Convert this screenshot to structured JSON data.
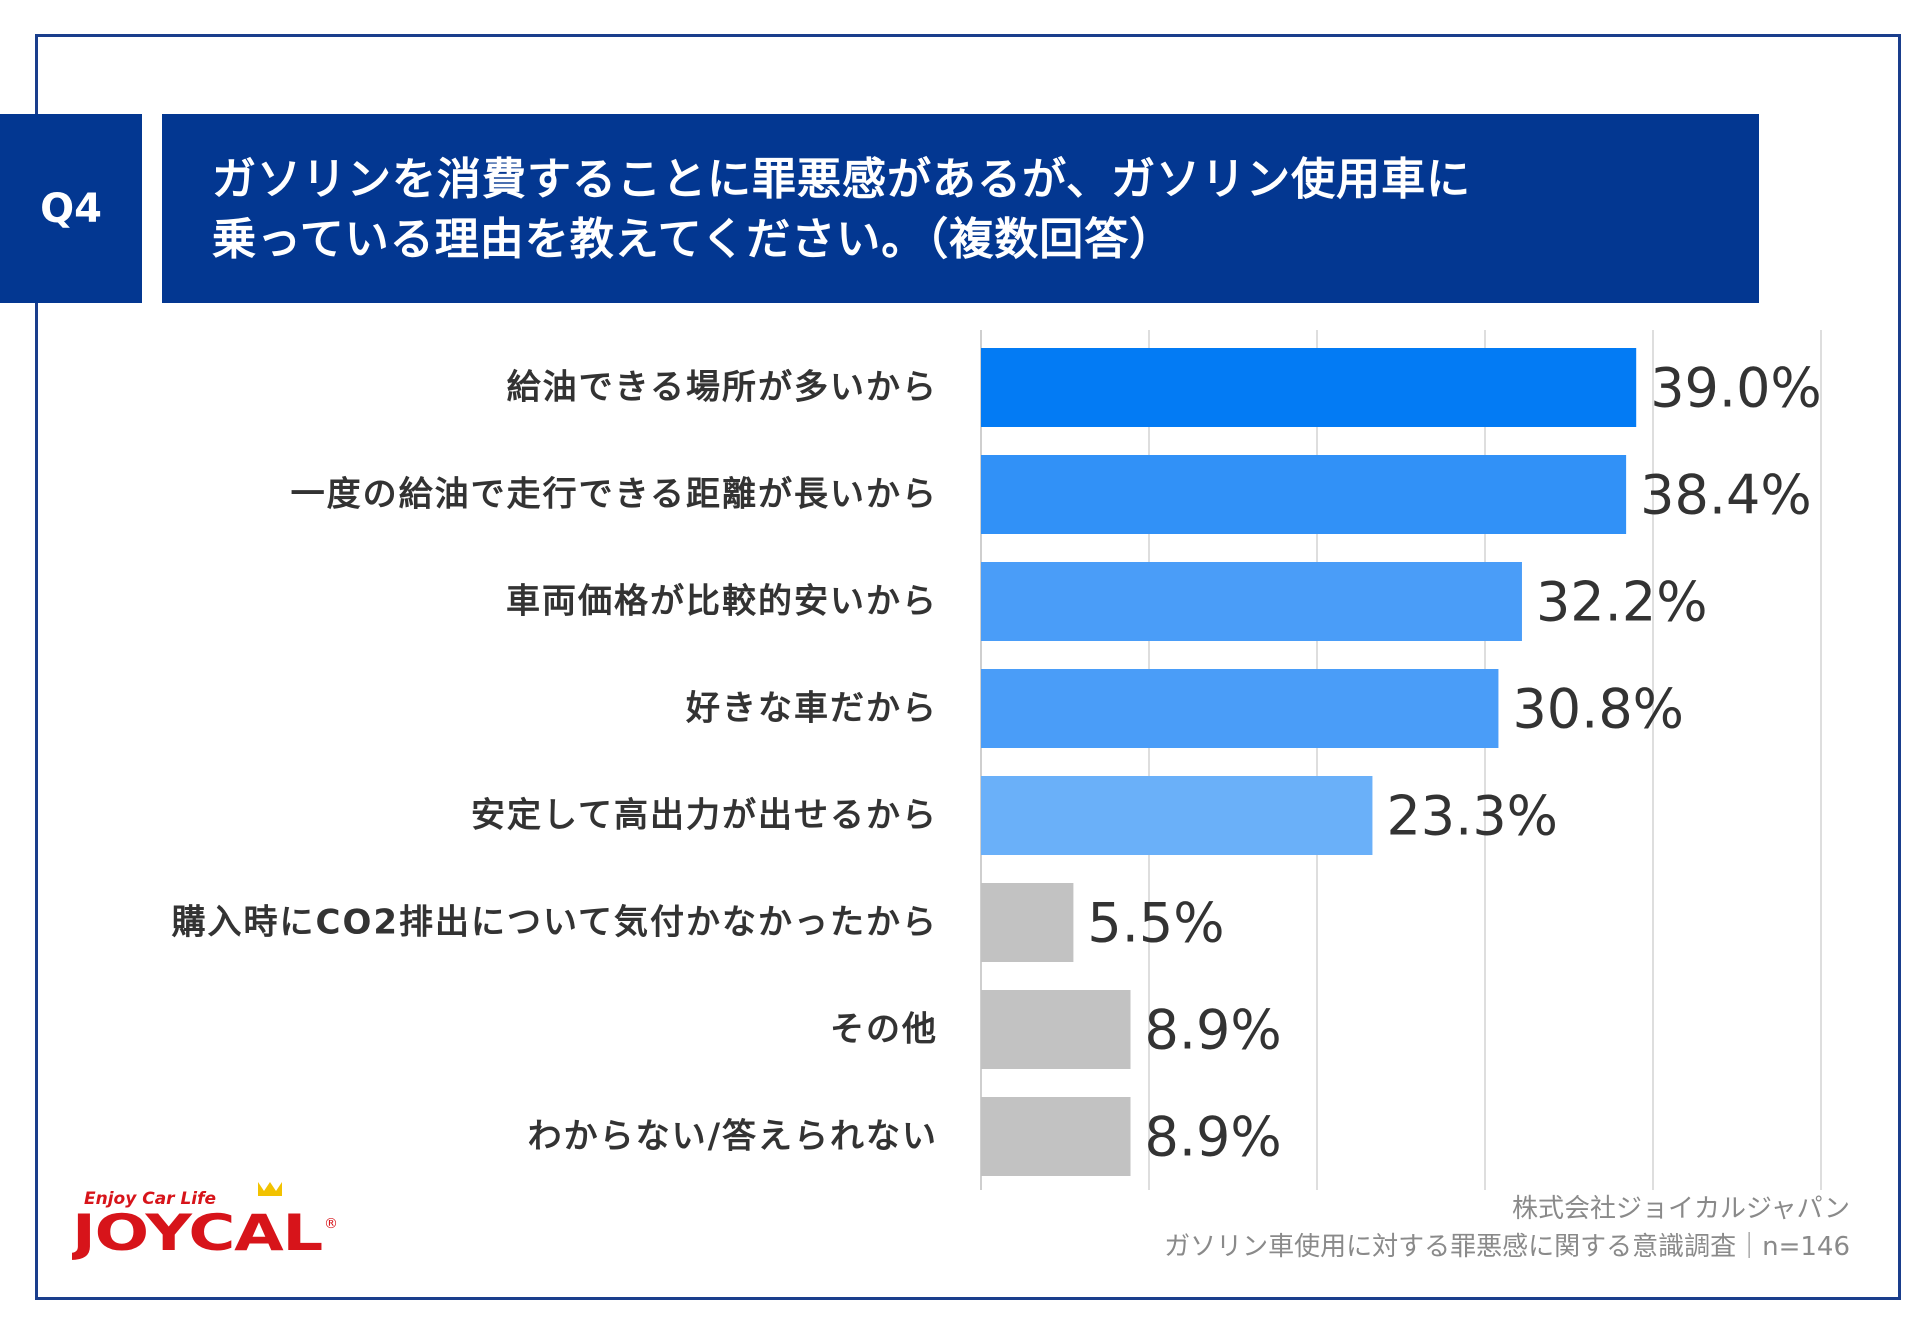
{
  "question": {
    "number": "Q4",
    "title_line1": "ガソリンを消費することに罪悪感があるが、ガソリン使用車に",
    "title_line2": "乗っている理由を教えてください。（複数回答）"
  },
  "chart_data": {
    "type": "bar",
    "orientation": "horizontal",
    "categories": [
      "給油できる場所が多いから",
      "一度の給油で走行できる距離が長いから",
      "車両価格が比較的安いから",
      "好きな車だから",
      "安定して高出力が出せるから",
      "購入時にCO2排出について気付かなかったから",
      "その他",
      "わからない/答えられない"
    ],
    "values": [
      39.0,
      38.4,
      32.2,
      30.8,
      23.3,
      5.5,
      8.9,
      8.9
    ],
    "value_labels": [
      "39.0%",
      "38.4%",
      "32.2%",
      "30.8%",
      "23.3%",
      "5.5%",
      "8.9%",
      "8.9%"
    ],
    "bar_colors": [
      "#037bf4",
      "#3191f7",
      "#4a9df8",
      "#4a9df8",
      "#6ab0f9",
      "#c2c2c2",
      "#c2c2c2",
      "#c2c2c2"
    ],
    "xlim": [
      0,
      50
    ],
    "grid_step": 10,
    "grid": true,
    "title": "",
    "xlabel": "",
    "ylabel": ""
  },
  "footer": {
    "company": "株式会社ジョイカルジャパン",
    "survey": "ガソリン車使用に対する罪悪感に関する意識調査｜n=146"
  },
  "logo": {
    "tagline": "Enjoy Car Life",
    "brand": "JOYCAL",
    "registered": "®",
    "brand_color": "#d7141a"
  }
}
